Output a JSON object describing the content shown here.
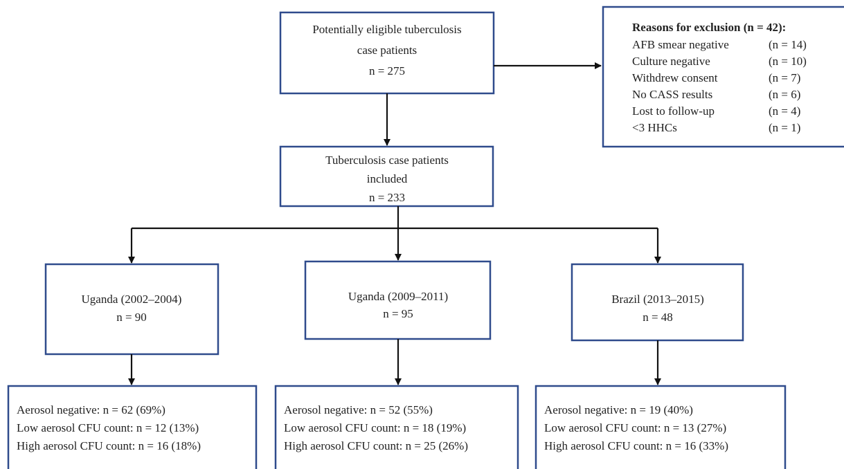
{
  "nodes": [
    {
      "lines": [
        "Potentially eligible tuberculosis",
        "case patients",
        "n = 275"
      ]
    },
    {
      "lines": [
        "Tuberculosis case patients",
        "included",
        "n = 233"
      ]
    },
    {
      "lines": [
        "Uganda  (2002–2004)",
        "n = 90"
      ]
    },
    {
      "lines": [
        "Uganda  (2009–2011)",
        "n = 95"
      ]
    },
    {
      "lines": [
        "Brazil  (2013–2015)",
        "n = 48"
      ]
    },
    {
      "lines": [
        "Aerosol negative: n = 62 (69%)",
        "Low aerosol CFU count: n = 12 (13%)",
        "High aerosol CFU count: n = 16 (18%)"
      ]
    },
    {
      "lines": [
        "Aerosol negative: n = 52 (55%)",
        "Low aerosol CFU count: n = 18 (19%)",
        "High aerosol CFU count: n = 25 (26%)"
      ]
    },
    {
      "lines": [
        "Aerosol negative: n = 19 (40%)",
        "Low aerosol CFU count: n = 13 (27%)",
        "High aerosol CFU count: n = 16 (33%)"
      ]
    }
  ],
  "exclusion": {
    "title": "Reasons for exclusion (n = 42):",
    "reasons": [
      {
        "label": "AFB smear negative",
        "count": "(n = 14)"
      },
      {
        "label": "Culture negative",
        "count": "(n = 10)"
      },
      {
        "label": "Withdrew consent",
        "count": "(n = 7)"
      },
      {
        "label": "No CASS results",
        "count": "(n = 6)"
      },
      {
        "label": "Lost to follow-up",
        "count": "(n = 4)"
      },
      {
        "label": "<3 HHCs",
        "count": "(n = 1)"
      }
    ]
  }
}
